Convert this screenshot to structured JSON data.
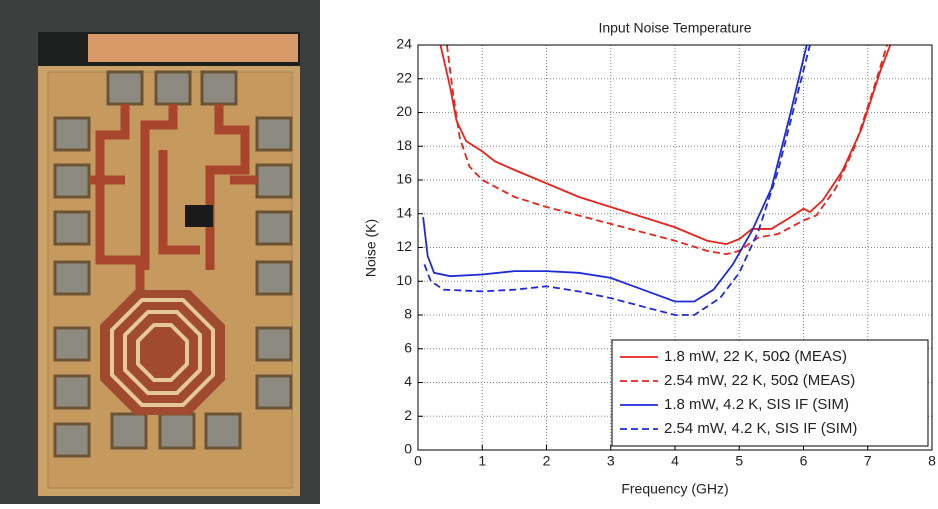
{
  "chart_data": {
    "type": "line",
    "title": "Input Noise Temperature",
    "x_label": "Frequency (GHz)",
    "y_label": "Noise (K)",
    "xlim": [
      0,
      8
    ],
    "xticks": [
      0,
      1,
      2,
      3,
      4,
      5,
      6,
      7,
      8
    ],
    "ylim": [
      0,
      24
    ],
    "yticks": [
      0,
      2,
      4,
      6,
      8,
      10,
      12,
      14,
      16,
      18,
      20,
      22,
      24
    ],
    "grid": true,
    "legend_location": "lower right",
    "series": [
      {
        "name": "1.8 mW, 22 K, 50Ω (MEAS)",
        "color": "#e8231c",
        "dash": "solid",
        "x": [
          0.35,
          0.5,
          0.6,
          0.75,
          1,
          1.2,
          1.5,
          2,
          2.5,
          3,
          3.5,
          4,
          4.5,
          4.8,
          5,
          5.2,
          5.5,
          5.8,
          6,
          6.1,
          6.3,
          6.6,
          6.9,
          7.2,
          7.35
        ],
        "values": [
          24,
          21.5,
          19.5,
          18.3,
          17.7,
          17.1,
          16.6,
          15.8,
          15,
          14.4,
          13.8,
          13.2,
          12.4,
          12.2,
          12.5,
          13.1,
          13.1,
          13.8,
          14.3,
          14.1,
          14.8,
          16.5,
          19,
          22.5,
          24
        ]
      },
      {
        "name": "2.54 mW, 22 K, 50Ω (MEAS)",
        "color": "#e8231c",
        "dash": "dashed",
        "x": [
          0.45,
          0.55,
          0.65,
          0.8,
          1,
          1.5,
          2,
          2.5,
          3,
          3.5,
          4,
          4.5,
          4.8,
          5,
          5.3,
          5.6,
          6,
          6.2,
          6.5,
          6.8,
          7.1,
          7.3
        ],
        "values": [
          24,
          21,
          18.5,
          16.8,
          16,
          15,
          14.4,
          13.9,
          13.4,
          12.9,
          12.4,
          11.8,
          11.6,
          11.8,
          12.6,
          12.8,
          13.6,
          13.9,
          15.5,
          18,
          21.5,
          24
        ]
      },
      {
        "name": "1.8 mW, 4.2 K, SIS IF (SIM)",
        "color": "#1f2bd6",
        "dash": "solid",
        "x": [
          0.08,
          0.15,
          0.25,
          0.5,
          1,
          1.5,
          2,
          2.5,
          3,
          3.5,
          4,
          4.3,
          4.6,
          4.9,
          5.2,
          5.5,
          5.8,
          6.05
        ],
        "values": [
          13.8,
          11.5,
          10.5,
          10.3,
          10.4,
          10.6,
          10.6,
          10.5,
          10.2,
          9.5,
          8.8,
          8.8,
          9.5,
          11,
          13,
          15.5,
          20,
          24
        ]
      },
      {
        "name": "2.54 mW, 4.2 K, SIS IF (SIM)",
        "color": "#1f2bd6",
        "dash": "dashed",
        "x": [
          0.1,
          0.2,
          0.4,
          1,
          1.5,
          2,
          2.5,
          3,
          3.5,
          4,
          4.3,
          4.7,
          5,
          5.3,
          5.6,
          5.9,
          6.1
        ],
        "values": [
          11,
          10,
          9.5,
          9.4,
          9.5,
          9.7,
          9.4,
          9,
          8.5,
          8,
          8,
          9,
          10.5,
          13,
          16.5,
          21,
          24
        ]
      }
    ]
  }
}
